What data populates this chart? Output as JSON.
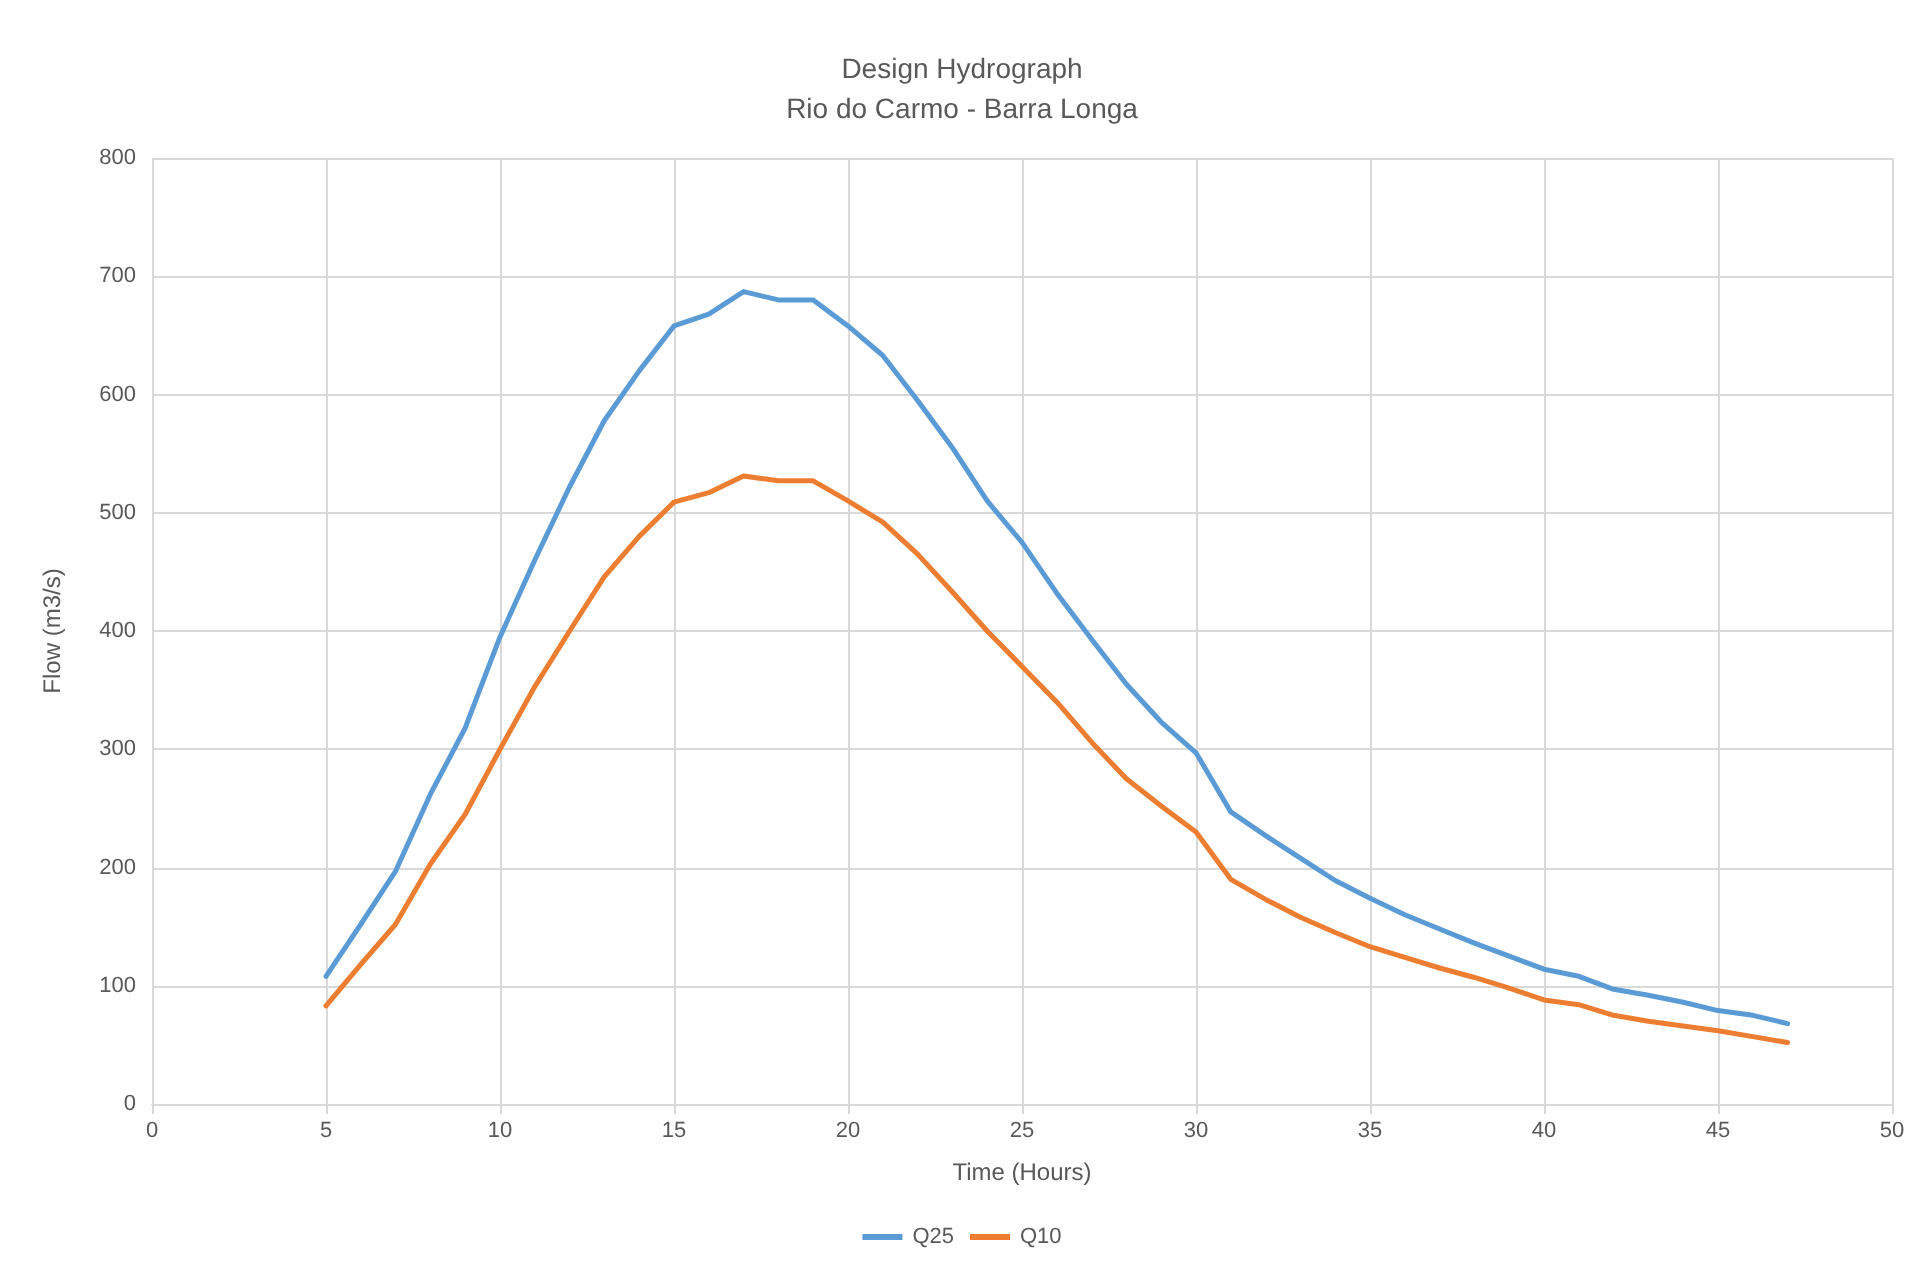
{
  "chart_data": {
    "type": "line",
    "title": "Design Hydrograph",
    "subtitle": "Rio do Carmo - Barra Longa",
    "xlabel": "Time (Hours)",
    "ylabel": "Flow (m3/s)",
    "x": [
      5,
      6,
      7,
      8,
      9,
      10,
      11,
      12,
      13,
      14,
      15,
      16,
      17,
      18,
      19,
      20,
      21,
      22,
      23,
      24,
      25,
      26,
      27,
      28,
      29,
      30,
      31,
      32,
      33,
      34,
      35,
      36,
      37,
      38,
      39,
      40,
      41,
      42,
      43,
      44,
      45,
      46,
      47
    ],
    "series": [
      {
        "name": "Q25",
        "color": "#5b9bd5",
        "values": [
          108,
          152,
          197,
          262,
          318,
          395,
          460,
          522,
          578,
          620,
          658,
          668,
          687,
          680,
          680,
          658,
          633,
          595,
          555,
          510,
          475,
          432,
          393,
          355,
          323,
          297,
          247,
          227,
          208,
          189,
          174,
          160,
          148,
          136,
          125,
          114,
          108,
          97,
          92,
          86,
          79,
          75,
          68
        ]
      },
      {
        "name": "Q10",
        "color": "#ed7d31",
        "values": [
          83,
          118,
          152,
          203,
          245,
          300,
          353,
          400,
          446,
          480,
          509,
          517,
          531,
          527,
          527,
          510,
          492,
          465,
          433,
          400,
          370,
          340,
          306,
          275,
          252,
          230,
          190,
          173,
          158,
          145,
          133,
          124,
          115,
          107,
          98,
          88,
          84,
          75,
          70,
          66,
          62,
          57,
          52
        ]
      }
    ],
    "xlim": [
      0,
      50
    ],
    "xticks": [
      0,
      5,
      10,
      15,
      20,
      25,
      30,
      35,
      40,
      45,
      50
    ],
    "ylim": [
      0,
      800
    ],
    "yticks": [
      0,
      100,
      200,
      300,
      400,
      500,
      600,
      700,
      800
    ],
    "grid": true,
    "legend": "bottom",
    "marker": "none",
    "line_style": "solid"
  }
}
